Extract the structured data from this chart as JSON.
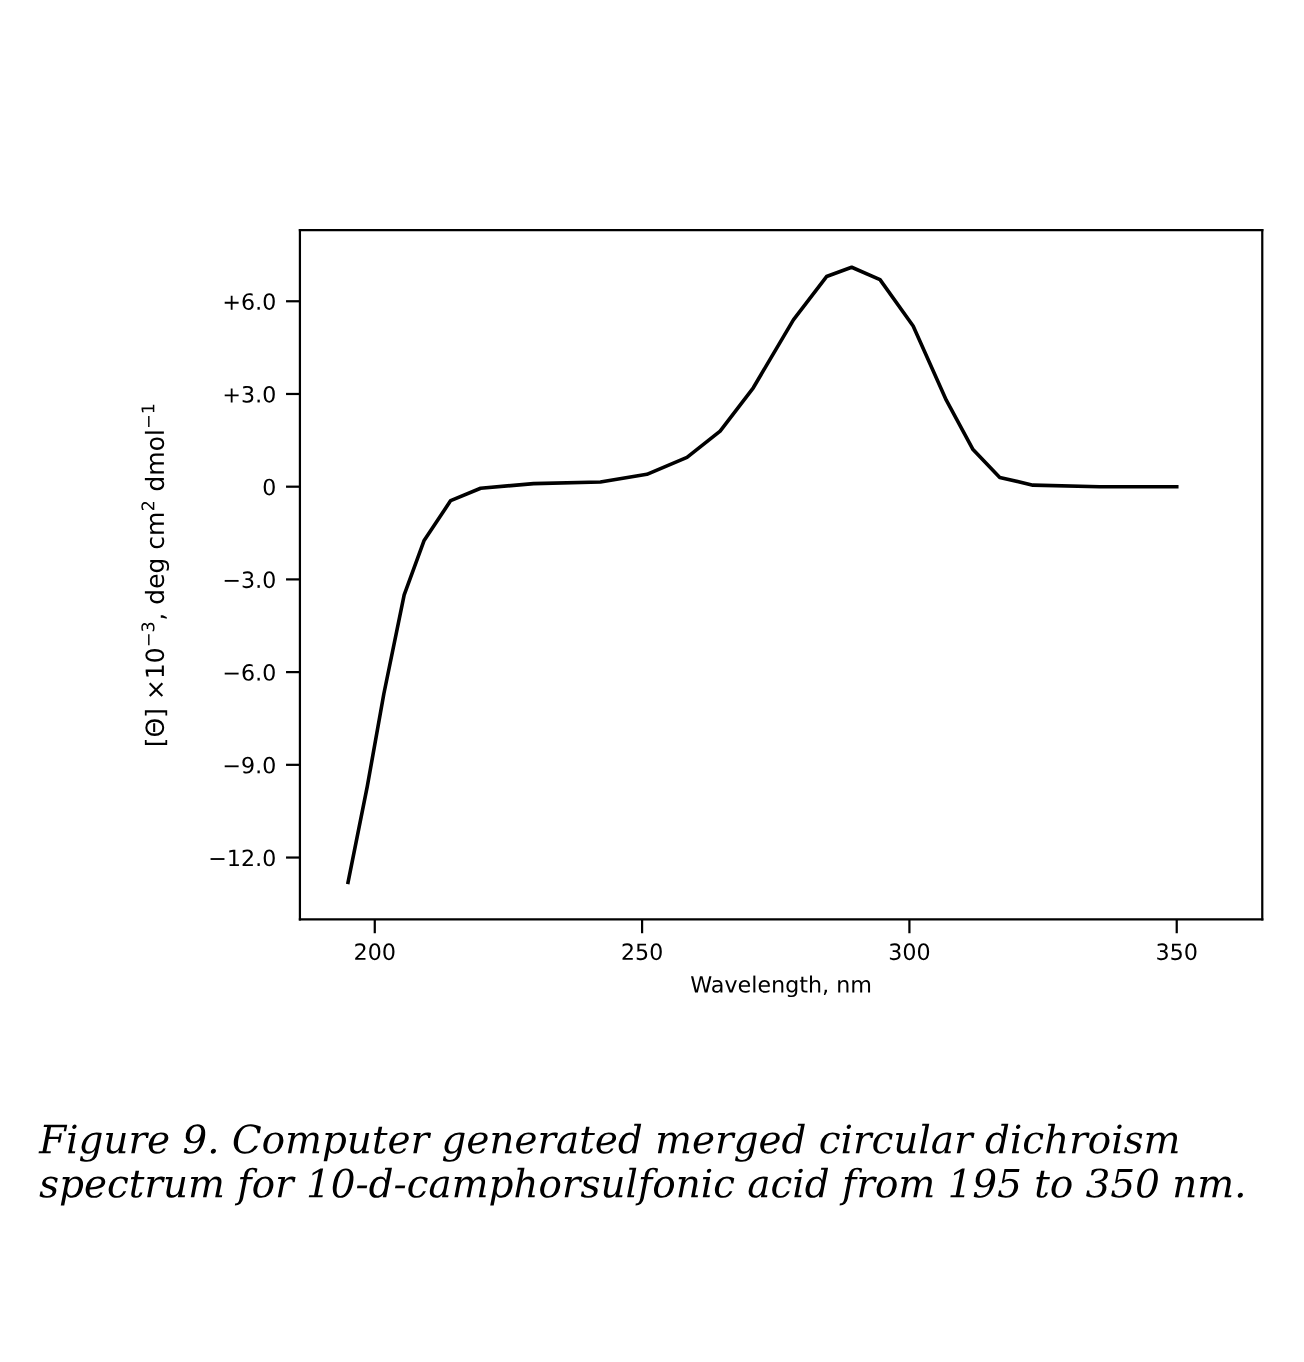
{
  "chart_data": {
    "type": "line",
    "xlabel": "Wavelength, nm",
    "ylabel": "[Θ] ×10$^{−3}$, deg cm$^{2}$ dmol$^{−1}$",
    "x": [
      195,
      198.6,
      201.7,
      205.5,
      209.2,
      214.2,
      219.8,
      229.7,
      242.2,
      250.9,
      258.4,
      264.6,
      270.8,
      278.3,
      284.5,
      289.2,
      294.5,
      300.7,
      306.9,
      311.9,
      316.9,
      323.1,
      335.6,
      350
    ],
    "series": [
      {
        "color": "#000000",
        "values": [
          -12.8,
          -9.7,
          -6.7,
          -3.5,
          -1.75,
          -0.45,
          -0.05,
          0.1,
          0.15,
          0.4,
          0.95,
          1.8,
          3.2,
          5.4,
          6.8,
          7.1,
          6.7,
          5.2,
          2.8,
          1.2,
          0.3,
          0.05,
          0.0,
          0.0
        ]
      }
    ],
    "xlim": [
      186,
      366
    ],
    "ylim": [
      -14.0,
      8.3
    ],
    "xticks": [
      200,
      250,
      300,
      350
    ],
    "yticks": [
      {
        "value": 6,
        "label": "+6.0"
      },
      {
        "value": 3,
        "label": "+3.0"
      },
      0,
      {
        "value": -3,
        "label": "−3.0"
      },
      {
        "value": -6,
        "label": "−6.0"
      },
      {
        "value": -9,
        "label": "−9.0"
      },
      {
        "value": -12,
        "label": "−12.0"
      }
    ],
    "grid": false,
    "legend": false,
    "marker": "none",
    "line_style": "solid",
    "annotations": [
      "Figure 9. Computer generated merged circular dichroism spectrum for 10-d-camphorsulfonic acid from 195 to 350 nm."
    ]
  }
}
